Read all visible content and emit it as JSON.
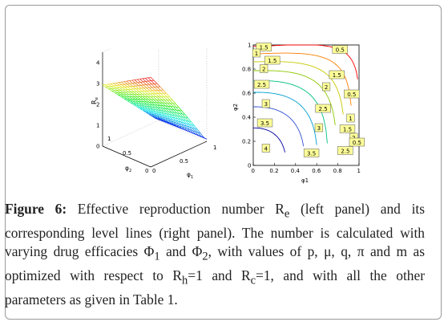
{
  "left_panel": {
    "z_label": "R",
    "z_label_sub": "e",
    "z_ticks": [
      "0",
      "1",
      "2",
      "3",
      "4"
    ],
    "x_label": "φ",
    "x_label_sub": "1",
    "x_ticks": [
      "0",
      "0.5",
      "1"
    ],
    "y_label": "φ",
    "y_label_sub": "2",
    "y_ticks": [
      "0",
      "0.5",
      "1"
    ]
  },
  "chart_data": {
    "type": "contour",
    "xlabel": "φ1",
    "ylabel": "φ2",
    "xlim": [
      0,
      1
    ],
    "ylim": [
      0,
      1
    ],
    "x_ticks": [
      "0",
      "0.2",
      "0.4",
      "0.6",
      "0.8",
      "1"
    ],
    "y_ticks": [
      "0",
      "0.2",
      "0.4",
      "0.6",
      "0.8",
      "1"
    ],
    "contour_labels": [
      {
        "text": "0.5",
        "x": 0.82,
        "y": 0.96
      },
      {
        "text": "1.5",
        "x": 0.1,
        "y": 0.98
      },
      {
        "text": "1",
        "x": 0.03,
        "y": 0.93
      },
      {
        "text": "1.5",
        "x": 0.18,
        "y": 0.87
      },
      {
        "text": "2",
        "x": 0.1,
        "y": 0.8
      },
      {
        "text": "1.5",
        "x": 0.79,
        "y": 0.75
      },
      {
        "text": "2.5",
        "x": 0.08,
        "y": 0.67
      },
      {
        "text": "2",
        "x": 0.69,
        "y": 0.65
      },
      {
        "text": "0.5",
        "x": 0.93,
        "y": 0.59
      },
      {
        "text": "3",
        "x": 0.12,
        "y": 0.51
      },
      {
        "text": "2.5",
        "x": 0.66,
        "y": 0.47
      },
      {
        "text": "3.5",
        "x": 0.11,
        "y": 0.35
      },
      {
        "text": "1",
        "x": 0.92,
        "y": 0.39
      },
      {
        "text": "3",
        "x": 0.62,
        "y": 0.31
      },
      {
        "text": "1.5",
        "x": 0.89,
        "y": 0.3
      },
      {
        "text": "2",
        "x": 0.95,
        "y": 0.23
      },
      {
        "text": "0.5",
        "x": 0.98,
        "y": 0.19
      },
      {
        "text": "4",
        "x": 0.12,
        "y": 0.14
      },
      {
        "text": "2.5",
        "x": 0.87,
        "y": 0.12
      },
      {
        "text": "3.5",
        "x": 0.55,
        "y": 0.1
      }
    ]
  },
  "caption": {
    "label": "Figure 6:",
    "pre": " Effective reproduction number R",
    "re_sub": "e",
    "t1": " (left panel) and its corresponding level lines (right panel). The number is calculated with varying drug efficacies Φ",
    "phi1_sub": "1",
    "t2": " and Φ",
    "phi2_sub": "2",
    "t3": ", with values of p, μ, q, π and m as optimized with respect to R",
    "rh_sub": "h",
    "t4": "=1 and R",
    "rc_sub": "c",
    "t5": "=1, and with all the other parameters as given in Table 1."
  }
}
